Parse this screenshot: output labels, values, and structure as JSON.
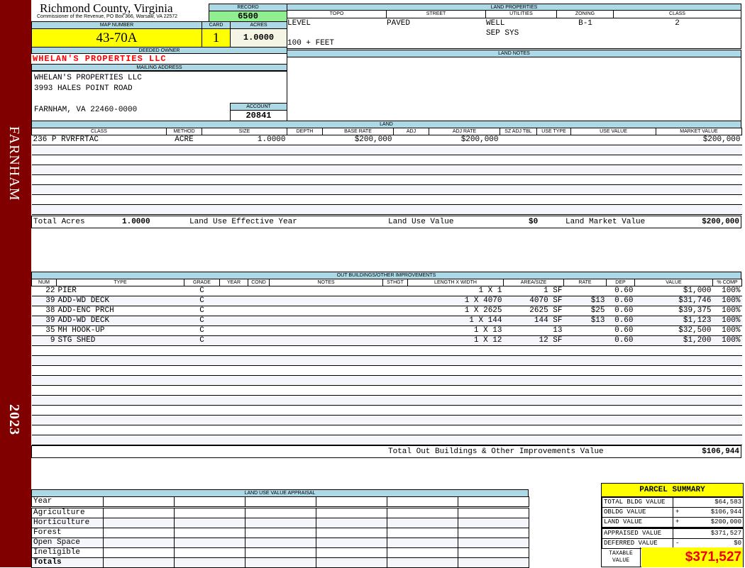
{
  "sidebar": {
    "district": "FARNHAM",
    "year": "2023"
  },
  "header": {
    "title": "Richmond County, Virginia",
    "subtitle": "Commissioner of the Revenue, PO Box 366, Warsaw, VA 22572",
    "record_label": "RECORD",
    "record": "6500",
    "map_label": "MAP NUMBER",
    "map_number": "43-70A",
    "card_label": "CARD",
    "card": "1",
    "acres_label": "ACRES",
    "acres": "1.0000"
  },
  "owner": {
    "deeded_label": "DEEDED OWNER",
    "deeded_owner": "WHELAN'S PROPERTIES LLC",
    "mailing_label": "MAILING ADDRESS",
    "address": [
      "WHELAN'S PROPERTIES LLC",
      "3993 HALES POINT ROAD",
      "",
      "FARNHAM, VA 22460-0000"
    ],
    "account_label": "ACCOUNT",
    "account": "20841"
  },
  "land_properties": {
    "label": "LAND PROPERTIES",
    "columns": [
      "TOPO",
      "STREET",
      "UTILITIES",
      "ZONING",
      "CLASS"
    ],
    "values": [
      [
        "LEVEL",
        "",
        "100 + FEET"
      ],
      [
        "PAVED"
      ],
      [
        "WELL",
        "SEP SYS"
      ],
      [
        "B-1"
      ],
      [
        "2"
      ]
    ]
  },
  "land_notes": {
    "label": "LAND NOTES"
  },
  "land": {
    "label": "LAND",
    "columns": [
      "CLASS",
      "METHOD",
      "SIZE",
      "DEPTH",
      "BASE RATE",
      "ADJ",
      "ADJ RATE",
      "SZ ADJ TBL",
      "USE TYPE",
      "USE VALUE",
      "MARKET VALUE"
    ],
    "rows": [
      [
        "236 P RVRFRTAC",
        "ACRE",
        "1.0000",
        "",
        "$200,000",
        "",
        "$200,000",
        "",
        "",
        "",
        "$200,000"
      ]
    ],
    "totals": {
      "acres_label": "Total Acres",
      "acres": "1.0000",
      "effective_label": "Land Use Effective Year",
      "use_value_label": "Land Use Value",
      "use_value": "$0",
      "market_label": "Land Market Value",
      "market_value": "$200,000"
    }
  },
  "outbuildings": {
    "label": "OUT BUILDINGS/OTHER IMPROVEMENTS",
    "columns": [
      "NUM",
      "TYPE",
      "GRADE",
      "YEAR",
      "COND",
      "NOTES",
      "STHGT",
      "LENGTH X WIDTH",
      "AREA/SIZE",
      "RATE",
      "DEP",
      "VALUE",
      "% COMP"
    ],
    "rows": [
      [
        "22",
        "PIER",
        "C",
        "",
        "",
        "",
        "",
        "1 X 1",
        "1 SF",
        "",
        "0.60",
        "$1,000",
        "100%"
      ],
      [
        "39",
        "ADD-WD DECK",
        "C",
        "",
        "",
        "",
        "",
        "1 X 4070",
        "4070 SF",
        "$13",
        "0.60",
        "$31,746",
        "100%"
      ],
      [
        "38",
        "ADD-ENC PRCH",
        "C",
        "",
        "",
        "",
        "",
        "1 X 2625",
        "2625 SF",
        "$25",
        "0.60",
        "$39,375",
        "100%"
      ],
      [
        "39",
        "ADD-WD DECK",
        "C",
        "",
        "",
        "",
        "",
        "1 X 144",
        "144 SF",
        "$13",
        "0.60",
        "$1,123",
        "100%"
      ],
      [
        "35",
        "MH HOOK-UP",
        "C",
        "",
        "",
        "",
        "",
        "1 X 13",
        "13",
        "",
        "0.60",
        "$32,500",
        "100%"
      ],
      [
        "9",
        "STG SHED",
        "C",
        "",
        "",
        "",
        "",
        "1 X 12",
        "12 SF",
        "",
        "0.60",
        "$1,200",
        "100%"
      ]
    ],
    "total_label": "Total Out Buildings & Other Improvements Value",
    "total": "$106,944"
  },
  "land_use": {
    "label": "LAND USE VALUE APPRAISAL",
    "rows": [
      "Year",
      "Agriculture",
      "Horticulture",
      "Forest",
      "Open Space",
      "Ineligible",
      "Totals"
    ]
  },
  "parcel_summary": {
    "title": "PARCEL SUMMARY",
    "rows": [
      {
        "label": "TOTAL BLDG VALUE",
        "op": "",
        "value": "$64,583"
      },
      {
        "label": "OBLDG VALUE",
        "op": "+",
        "value": "$106,944"
      },
      {
        "label": "LAND VALUE",
        "op": "+",
        "value": "$200,000"
      },
      {
        "label": "APPRAISED VALUE",
        "op": "",
        "value": "$371,527"
      },
      {
        "label": "DEFERRED VALUE",
        "op": "-",
        "value": "$0"
      }
    ],
    "taxable_label": "TAXABLE VALUE",
    "taxable": "$371,527"
  },
  "colors": {
    "sidebar": "#800000",
    "label_bg": "#add8e6",
    "highlight": "#ffff00",
    "record": "#90ee90",
    "owner": "#ff0000"
  }
}
